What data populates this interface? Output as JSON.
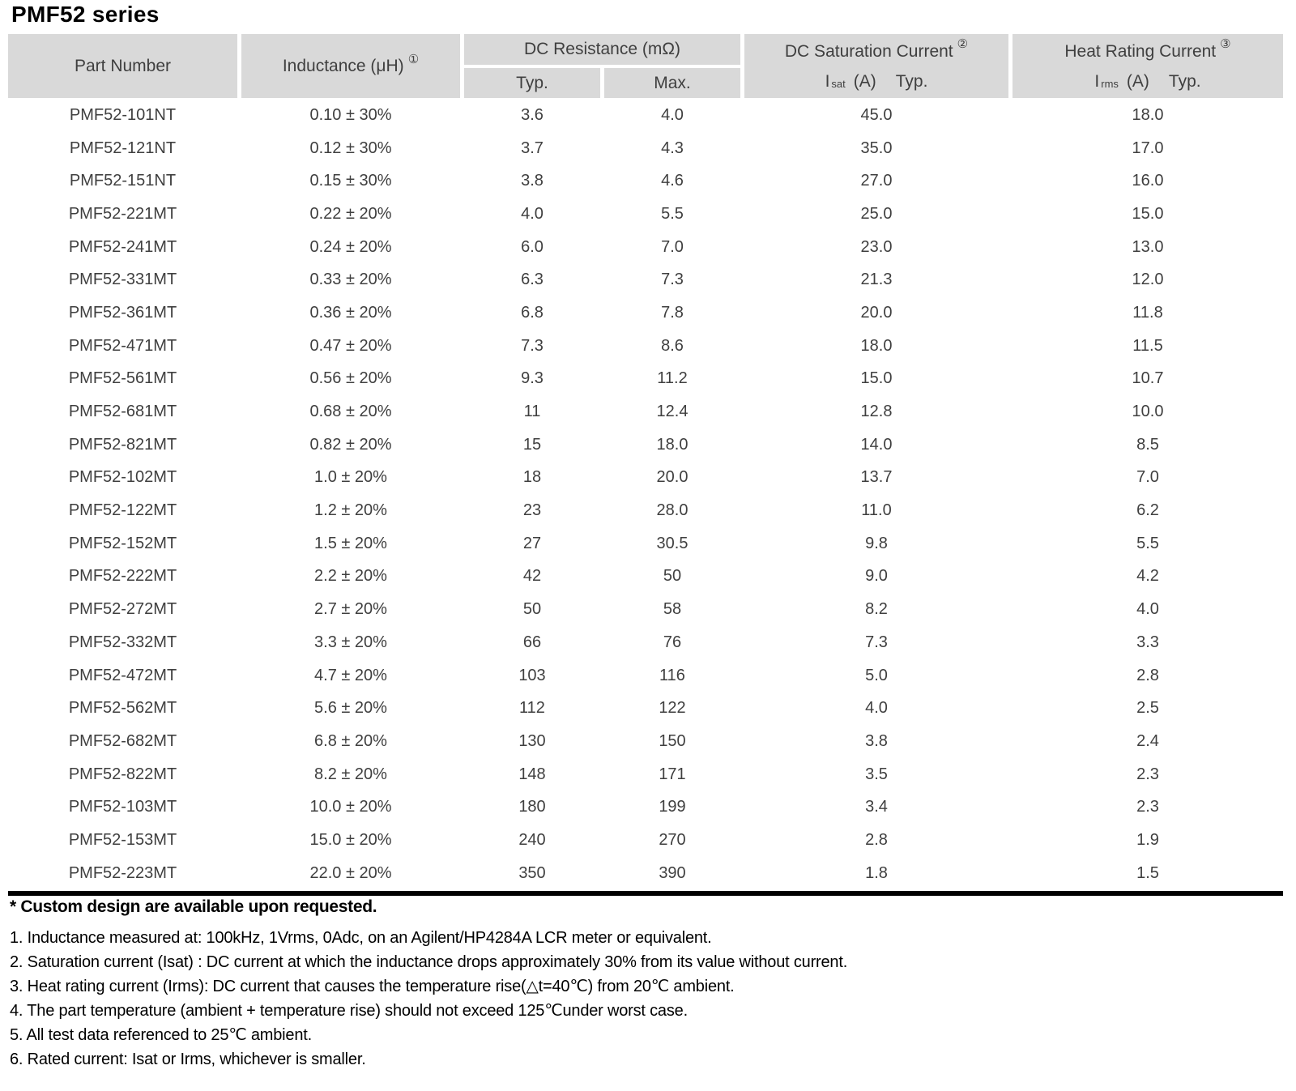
{
  "title": "PMF52 series",
  "colors": {
    "header_bg": "#d9d9d9",
    "table_text": "#3f3f3f",
    "notes_text": "#000000",
    "rule": "#000000"
  },
  "table": {
    "header": {
      "part_number": "Part Number",
      "inductance": "Inductance (μH)",
      "inductance_note_ref": "①",
      "dc_resistance": "DC Resistance (mΩ)",
      "dcr_typ": "Typ.",
      "dcr_max": "Max.",
      "dc_saturation": "DC Saturation Current",
      "dc_saturation_note_ref": "②",
      "isat": {
        "i": "I",
        "sub": "sat",
        "unit": "(A)",
        "typ": "Typ."
      },
      "heat_rating": "Heat Rating Current",
      "heat_rating_note_ref": "③",
      "irms": {
        "i": "I",
        "sub": "rms",
        "unit": "(A)",
        "typ": "Typ."
      }
    },
    "rows": [
      {
        "part": "PMF52-101NT",
        "inductance": "0.10 ± 30%",
        "dcr_typ": "3.6",
        "dcr_max": "4.0",
        "isat": "45.0",
        "irms": "18.0"
      },
      {
        "part": "PMF52-121NT",
        "inductance": "0.12 ± 30%",
        "dcr_typ": "3.7",
        "dcr_max": "4.3",
        "isat": "35.0",
        "irms": "17.0"
      },
      {
        "part": "PMF52-151NT",
        "inductance": "0.15 ± 30%",
        "dcr_typ": "3.8",
        "dcr_max": "4.6",
        "isat": "27.0",
        "irms": "16.0"
      },
      {
        "part": "PMF52-221MT",
        "inductance": "0.22 ± 20%",
        "dcr_typ": "4.0",
        "dcr_max": "5.5",
        "isat": "25.0",
        "irms": "15.0"
      },
      {
        "part": "PMF52-241MT",
        "inductance": "0.24 ± 20%",
        "dcr_typ": "6.0",
        "dcr_max": "7.0",
        "isat": "23.0",
        "irms": "13.0"
      },
      {
        "part": "PMF52-331MT",
        "inductance": "0.33 ± 20%",
        "dcr_typ": "6.3",
        "dcr_max": "7.3",
        "isat": "21.3",
        "irms": "12.0"
      },
      {
        "part": "PMF52-361MT",
        "inductance": "0.36 ± 20%",
        "dcr_typ": "6.8",
        "dcr_max": "7.8",
        "isat": "20.0",
        "irms": "11.8"
      },
      {
        "part": "PMF52-471MT",
        "inductance": "0.47 ± 20%",
        "dcr_typ": "7.3",
        "dcr_max": "8.6",
        "isat": "18.0",
        "irms": "11.5"
      },
      {
        "part": "PMF52-561MT",
        "inductance": "0.56 ± 20%",
        "dcr_typ": "9.3",
        "dcr_max": "11.2",
        "isat": "15.0",
        "irms": "10.7"
      },
      {
        "part": "PMF52-681MT",
        "inductance": "0.68 ± 20%",
        "dcr_typ": "11",
        "dcr_max": "12.4",
        "isat": "12.8",
        "irms": "10.0"
      },
      {
        "part": "PMF52-821MT",
        "inductance": "0.82 ± 20%",
        "dcr_typ": "15",
        "dcr_max": "18.0",
        "isat": "14.0",
        "irms": "8.5"
      },
      {
        "part": "PMF52-102MT",
        "inductance": "1.0 ± 20%",
        "dcr_typ": "18",
        "dcr_max": "20.0",
        "isat": "13.7",
        "irms": "7.0"
      },
      {
        "part": "PMF52-122MT",
        "inductance": "1.2 ± 20%",
        "dcr_typ": "23",
        "dcr_max": "28.0",
        "isat": "11.0",
        "irms": "6.2"
      },
      {
        "part": "PMF52-152MT",
        "inductance": "1.5 ± 20%",
        "dcr_typ": "27",
        "dcr_max": "30.5",
        "isat": "9.8",
        "irms": "5.5"
      },
      {
        "part": "PMF52-222MT",
        "inductance": "2.2 ± 20%",
        "dcr_typ": "42",
        "dcr_max": "50",
        "isat": "9.0",
        "irms": "4.2"
      },
      {
        "part": "PMF52-272MT",
        "inductance": "2.7 ± 20%",
        "dcr_typ": "50",
        "dcr_max": "58",
        "isat": "8.2",
        "irms": "4.0"
      },
      {
        "part": "PMF52-332MT",
        "inductance": "3.3 ± 20%",
        "dcr_typ": "66",
        "dcr_max": "76",
        "isat": "7.3",
        "irms": "3.3"
      },
      {
        "part": "PMF52-472MT",
        "inductance": "4.7 ± 20%",
        "dcr_typ": "103",
        "dcr_max": "116",
        "isat": "5.0",
        "irms": "2.8"
      },
      {
        "part": "PMF52-562MT",
        "inductance": "5.6 ± 20%",
        "dcr_typ": "112",
        "dcr_max": "122",
        "isat": "4.0",
        "irms": "2.5"
      },
      {
        "part": "PMF52-682MT",
        "inductance": "6.8 ± 20%",
        "dcr_typ": "130",
        "dcr_max": "150",
        "isat": "3.8",
        "irms": "2.4"
      },
      {
        "part": "PMF52-822MT",
        "inductance": "8.2 ± 20%",
        "dcr_typ": "148",
        "dcr_max": "171",
        "isat": "3.5",
        "irms": "2.3"
      },
      {
        "part": "PMF52-103MT",
        "inductance": "10.0 ± 20%",
        "dcr_typ": "180",
        "dcr_max": "199",
        "isat": "3.4",
        "irms": "2.3"
      },
      {
        "part": "PMF52-153MT",
        "inductance": "15.0 ± 20%",
        "dcr_typ": "240",
        "dcr_max": "270",
        "isat": "2.8",
        "irms": "1.9"
      },
      {
        "part": "PMF52-223MT",
        "inductance": "22.0 ± 20%",
        "dcr_typ": "350",
        "dcr_max": "390",
        "isat": "1.8",
        "irms": "1.5"
      }
    ]
  },
  "footnote_bold": "* Custom design are available upon requested.",
  "footnotes": [
    "1. Inductance measured at: 100kHz, 1Vrms, 0Adc, on an Agilent/HP4284A LCR meter or equivalent.",
    "2. Saturation current (Isat) : DC current at which the inductance drops approximately 30% from its value without current.",
    "3. Heat rating current (Irms): DC current that causes the temperature rise(△t=40℃) from 20℃ ambient.",
    "4. The part temperature (ambient + temperature rise) should not exceed 125℃under worst case.",
    "5. All test data referenced to 25℃ ambient.",
    "6. Rated current: Isat or Irms, whichever is smaller."
  ]
}
